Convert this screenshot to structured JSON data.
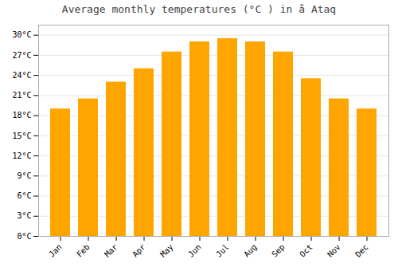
{
  "chart_data": {
    "type": "bar",
    "title": "Average monthly temperatures (°C ) in å  Ataq",
    "categories": [
      "Jan",
      "Feb",
      "Mar",
      "Apr",
      "May",
      "Jun",
      "Jul",
      "Aug",
      "Sep",
      "Oct",
      "Nov",
      "Dec"
    ],
    "values": [
      19.0,
      20.5,
      23.0,
      25.0,
      27.5,
      29.0,
      29.5,
      29.0,
      27.5,
      23.5,
      20.5,
      19.0
    ],
    "color": "#FFA500",
    "ylim": [
      0,
      31.5
    ],
    "yticks": [
      {
        "value": 0,
        "label": "0°C"
      },
      {
        "value": 3,
        "label": "3°C"
      },
      {
        "value": 6,
        "label": "6°C"
      },
      {
        "value": 9,
        "label": "9°C"
      },
      {
        "value": 12,
        "label": "12°C"
      },
      {
        "value": 15,
        "label": "15°C"
      },
      {
        "value": 18,
        "label": "18°C"
      },
      {
        "value": 21,
        "label": "21°C"
      },
      {
        "value": 24,
        "label": "24°C"
      },
      {
        "value": 27,
        "label": "27°C"
      },
      {
        "value": 30,
        "label": "30°C"
      }
    ],
    "grid": true
  }
}
